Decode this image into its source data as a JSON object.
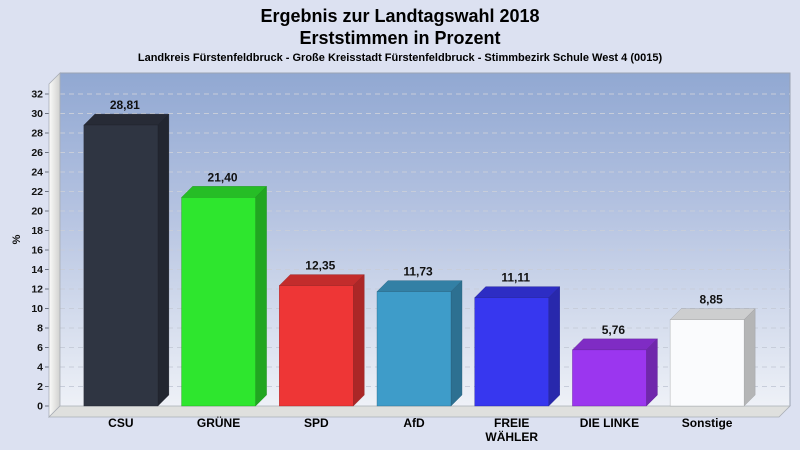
{
  "title": {
    "line1": "Ergebnis zur Landtagswahl 2018",
    "line2": "Erststimmen in Prozent"
  },
  "subtitle": "Landkreis Fürstenfeldbruck - Große Kreisstadt Fürstenfeldbruck - Stimmbezirk Schule West 4 (0015)",
  "chart_data": {
    "type": "bar",
    "style": "3d-columns",
    "title": "Ergebnis zur Landtagswahl 2018 – Erststimmen in Prozent",
    "xlabel": "",
    "ylabel": "%",
    "ylim": [
      0,
      34
    ],
    "yticks": [
      0,
      2,
      4,
      6,
      8,
      10,
      12,
      14,
      16,
      18,
      20,
      22,
      24,
      26,
      28,
      30,
      32
    ],
    "grid": "horizontal-dashed",
    "legend": "none",
    "categories": [
      "CSU",
      "GRÜNE",
      "SPD",
      "AfD",
      "FREIE WÄHLER",
      "DIE LINKE",
      "Sonstige"
    ],
    "category_lines": [
      [
        "CSU"
      ],
      [
        "GRÜNE"
      ],
      [
        "SPD"
      ],
      [
        "AfD"
      ],
      [
        "FREIE",
        "WÄHLER"
      ],
      [
        "DIE LINKE"
      ],
      [
        "Sonstige"
      ]
    ],
    "values": [
      28.81,
      21.4,
      12.35,
      11.73,
      11.11,
      5.76,
      8.85
    ],
    "value_labels": [
      "28,81",
      "21,40",
      "12,35",
      "11,73",
      "11,11",
      "5,76",
      "8,85"
    ],
    "bar_colors": [
      "#2f3542",
      "#2ee62e",
      "#ee3636",
      "#3e9cc9",
      "#3737ef",
      "#9b36ef",
      "#fafbfd"
    ],
    "plot_colors": {
      "page_background": "#dce1f1",
      "wall_gradient_top": "#91a8d2",
      "wall_gradient_mid": "#b5c3e1",
      "wall_gradient_bottom": "#eef1f7",
      "side_wall_light": "#fbfbfa",
      "side_wall_dark": "#d0d1cf",
      "floor": "#dfe0de",
      "frame_edge": "#9aa3b4",
      "gridline": "#c7cdda",
      "tick": "#6b7280",
      "text": "#111111"
    }
  }
}
